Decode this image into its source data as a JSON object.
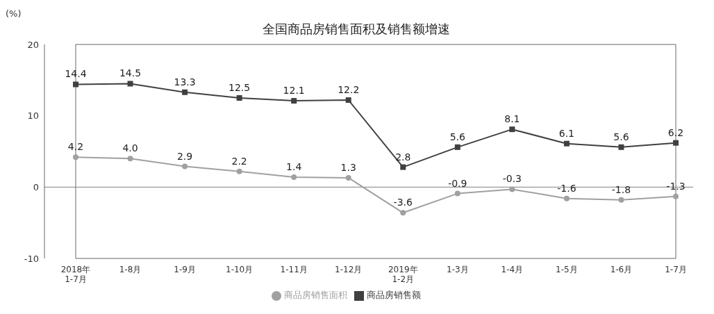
{
  "chart_data": {
    "type": "line",
    "title": "全国商品房销售面积及销售额增速",
    "ylabel": "(%)",
    "categories": [
      "2018年\n1-7月",
      "1-8月",
      "1-9月",
      "1-10月",
      "1-11月",
      "1-12月",
      "2019年\n1-2月",
      "1-3月",
      "1-4月",
      "1-5月",
      "1-6月",
      "1-7月"
    ],
    "series": [
      {
        "name": "商品房销售面积",
        "color": "#a0a0a0",
        "marker": "circle",
        "values": [
          4.2,
          4.0,
          2.9,
          2.2,
          1.4,
          1.3,
          -3.6,
          -0.9,
          -0.3,
          -1.6,
          -1.8,
          -1.3
        ],
        "value_labels": [
          "4.2",
          "4.0",
          "2.9",
          "2.2",
          "1.4",
          "1.3",
          "-3.6",
          "-0.9",
          "-0.3",
          "-1.6",
          "-1.8",
          "-1.3"
        ]
      },
      {
        "name": "商品房销售额",
        "color": "#404040",
        "marker": "square",
        "values": [
          14.4,
          14.5,
          13.3,
          12.5,
          12.1,
          12.2,
          2.8,
          5.6,
          8.1,
          6.1,
          5.6,
          6.2
        ]
      }
    ],
    "ylim": [
      -10,
      20
    ],
    "yticks": [
      -10,
      0,
      10,
      20
    ],
    "grid": false,
    "legend": "bottom",
    "data_labels": true,
    "ref_lines": [
      {
        "axis": "y",
        "value": 0,
        "color": "#808080"
      }
    ]
  }
}
